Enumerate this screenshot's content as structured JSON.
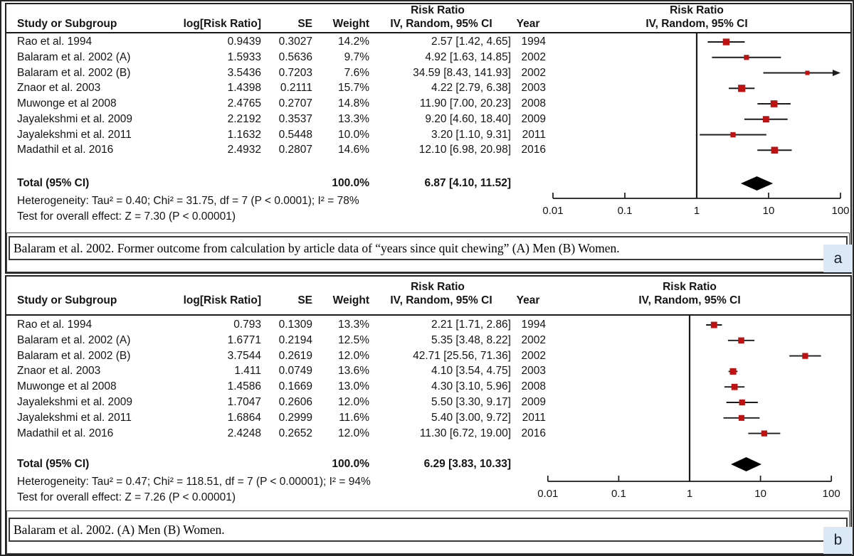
{
  "chart_data": [
    {
      "type": "forest",
      "panel_label": "a",
      "effect_measure_header": [
        "Risk Ratio",
        "IV, Random, 95% CI"
      ],
      "columns": [
        "Study or Subgroup",
        "log[Risk Ratio]",
        "SE",
        "Weight",
        "IV, Random, 95% CI",
        "Year"
      ],
      "x_axis": {
        "scale": "log10",
        "ticks": [
          0.01,
          0.1,
          1,
          10,
          100
        ],
        "tick_labels": [
          "0.01",
          "0.1",
          "1",
          "10",
          "100"
        ]
      },
      "studies": [
        {
          "name": "Rao et al. 1994",
          "log_rr": "0.9439",
          "se": "0.3027",
          "weight": "14.2%",
          "ci_text": "2.57 [1.42, 4.65]",
          "year": "1994",
          "rr": 2.57,
          "lo": 1.42,
          "hi": 4.65,
          "weight_pct": 14.2
        },
        {
          "name": "Balaram et al. 2002 (A)",
          "log_rr": "1.5933",
          "se": "0.5636",
          "weight": "9.7%",
          "ci_text": "4.92 [1.63, 14.85]",
          "year": "2002",
          "rr": 4.92,
          "lo": 1.63,
          "hi": 14.85,
          "weight_pct": 9.7
        },
        {
          "name": "Balaram et al. 2002 (B)",
          "log_rr": "3.5436",
          "se": "0.7203",
          "weight": "7.6%",
          "ci_text": "34.59 [8.43, 141.93]",
          "year": "2002",
          "rr": 34.59,
          "lo": 8.43,
          "hi": 141.93,
          "weight_pct": 7.6
        },
        {
          "name": "Znaor et al. 2003",
          "log_rr": "1.4398",
          "se": "0.2111",
          "weight": "15.7%",
          "ci_text": "4.22 [2.79, 6.38]",
          "year": "2003",
          "rr": 4.22,
          "lo": 2.79,
          "hi": 6.38,
          "weight_pct": 15.7
        },
        {
          "name": "Muwonge et al 2008",
          "log_rr": "2.4765",
          "se": "0.2707",
          "weight": "14.8%",
          "ci_text": "11.90 [7.00, 20.23]",
          "year": "2008",
          "rr": 11.9,
          "lo": 7.0,
          "hi": 20.23,
          "weight_pct": 14.8
        },
        {
          "name": "Jayalekshmi et al. 2009",
          "log_rr": "2.2192",
          "se": "0.3537",
          "weight": "13.3%",
          "ci_text": "9.20 [4.60, 18.40]",
          "year": "2009",
          "rr": 9.2,
          "lo": 4.6,
          "hi": 18.4,
          "weight_pct": 13.3
        },
        {
          "name": "Jayalekshmi et al. 2011",
          "log_rr": "1.1632",
          "se": "0.5448",
          "weight": "10.0%",
          "ci_text": "3.20 [1.10, 9.31]",
          "year": "2011",
          "rr": 3.2,
          "lo": 1.1,
          "hi": 9.31,
          "weight_pct": 10.0
        },
        {
          "name": "Madathil et al. 2016",
          "log_rr": "2.4932",
          "se": "0.2807",
          "weight": "14.6%",
          "ci_text": "12.10 [6.98, 20.98]",
          "year": "2016",
          "rr": 12.1,
          "lo": 6.98,
          "hi": 20.98,
          "weight_pct": 14.6
        }
      ],
      "total": {
        "label": "Total (95% CI)",
        "weight": "100.0%",
        "ci_text": "6.87 [4.10, 11.52]",
        "rr": 6.87,
        "lo": 4.1,
        "hi": 11.52
      },
      "heterogeneity": "Heterogeneity: Tau² = 0.40; Chi² = 31.75, df = 7 (P < 0.0001); I² = 78%",
      "overall_effect": "Test for overall effect: Z = 7.30 (P < 0.00001)",
      "caption": "Balaram et al. 2002. Former outcome from calculation by article data of “years since quit chewing” (A) Men (B) Women.",
      "marker_color": "#be1212",
      "badge_bg": "#dbe8f5"
    },
    {
      "type": "forest",
      "panel_label": "b",
      "effect_measure_header": [
        "Risk Ratio",
        "IV, Random, 95% CI"
      ],
      "columns": [
        "Study or Subgroup",
        "log[Risk Ratio]",
        "SE",
        "Weight",
        "IV, Random, 95% CI",
        "Year"
      ],
      "x_axis": {
        "scale": "log10",
        "ticks": [
          0.01,
          0.1,
          1,
          10,
          100
        ],
        "tick_labels": [
          "0.01",
          "0.1",
          "1",
          "10",
          "100"
        ]
      },
      "studies": [
        {
          "name": "Rao et al. 1994",
          "log_rr": "0.793",
          "se": "0.1309",
          "weight": "13.3%",
          "ci_text": "2.21 [1.71, 2.86]",
          "year": "1994",
          "rr": 2.21,
          "lo": 1.71,
          "hi": 2.86,
          "weight_pct": 13.3
        },
        {
          "name": "Balaram et al. 2002 (A)",
          "log_rr": "1.6771",
          "se": "0.2194",
          "weight": "12.5%",
          "ci_text": "5.35 [3.48, 8.22]",
          "year": "2002",
          "rr": 5.35,
          "lo": 3.48,
          "hi": 8.22,
          "weight_pct": 12.5
        },
        {
          "name": "Balaram et al. 2002 (B)",
          "log_rr": "3.7544",
          "se": "0.2619",
          "weight": "12.0%",
          "ci_text": "42.71 [25.56, 71.36]",
          "year": "2002",
          "rr": 42.71,
          "lo": 25.56,
          "hi": 71.36,
          "weight_pct": 12.0
        },
        {
          "name": "Znaor et al. 2003",
          "log_rr": "1.411",
          "se": "0.0749",
          "weight": "13.6%",
          "ci_text": "4.10 [3.54, 4.75]",
          "year": "2003",
          "rr": 4.1,
          "lo": 3.54,
          "hi": 4.75,
          "weight_pct": 13.6
        },
        {
          "name": "Muwonge et al 2008",
          "log_rr": "1.4586",
          "se": "0.1669",
          "weight": "13.0%",
          "ci_text": "4.30 [3.10, 5.96]",
          "year": "2008",
          "rr": 4.3,
          "lo": 3.1,
          "hi": 5.96,
          "weight_pct": 13.0
        },
        {
          "name": "Jayalekshmi et al. 2009",
          "log_rr": "1.7047",
          "se": "0.2606",
          "weight": "12.0%",
          "ci_text": "5.50 [3.30, 9.17]",
          "year": "2009",
          "rr": 5.5,
          "lo": 3.3,
          "hi": 9.17,
          "weight_pct": 12.0
        },
        {
          "name": "Jayalekshmi et al. 2011",
          "log_rr": "1.6864",
          "se": "0.2999",
          "weight": "11.6%",
          "ci_text": "5.40 [3.00, 9.72]",
          "year": "2011",
          "rr": 5.4,
          "lo": 3.0,
          "hi": 9.72,
          "weight_pct": 11.6
        },
        {
          "name": "Madathil et al. 2016",
          "log_rr": "2.4248",
          "se": "0.2652",
          "weight": "12.0%",
          "ci_text": "11.30 [6.72, 19.00]",
          "year": "2016",
          "rr": 11.3,
          "lo": 6.72,
          "hi": 19.0,
          "weight_pct": 12.0
        }
      ],
      "total": {
        "label": "Total (95% CI)",
        "weight": "100.0%",
        "ci_text": "6.29 [3.83, 10.33]",
        "rr": 6.29,
        "lo": 3.83,
        "hi": 10.33
      },
      "heterogeneity": "Heterogeneity: Tau² = 0.47; Chi² = 118.51, df = 7 (P < 0.00001); I² = 94%",
      "overall_effect": "Test for overall effect: Z = 7.26 (P < 0.00001)",
      "caption": "Balaram et al. 2002. (A) Men (B) Women.",
      "marker_color": "#be1212",
      "badge_bg": "#dbe8f5"
    }
  ]
}
